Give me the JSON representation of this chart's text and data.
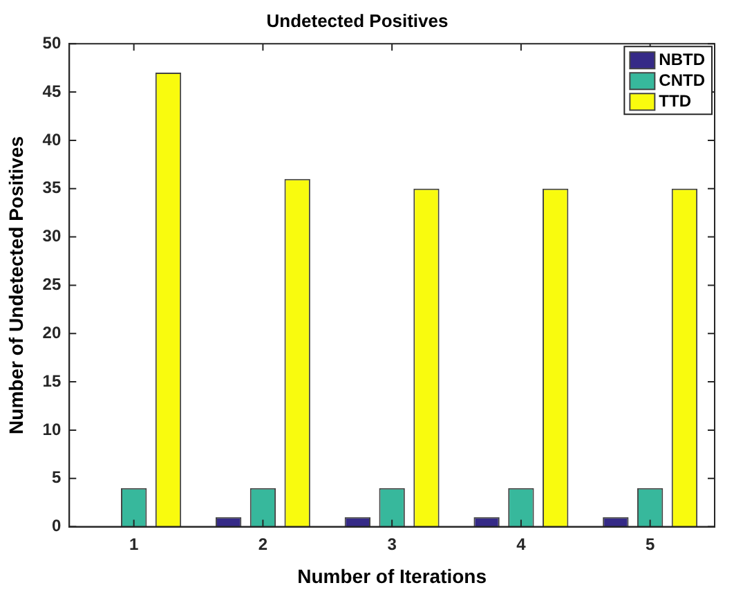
{
  "chart_data": {
    "type": "bar",
    "title": "Undetected Positives",
    "xlabel": "Number of Iterations",
    "ylabel": "Number of Undetected Positives",
    "categories": [
      "1",
      "2",
      "3",
      "4",
      "5"
    ],
    "series": [
      {
        "name": "NBTD",
        "color": "#352a87",
        "values": [
          0,
          1,
          1,
          1,
          1
        ]
      },
      {
        "name": "CNTD",
        "color": "#37b89c",
        "values": [
          4,
          4,
          4,
          4,
          4
        ]
      },
      {
        "name": "TTD",
        "color": "#f9fb0e",
        "values": [
          47,
          36,
          35,
          35,
          35
        ]
      }
    ],
    "ylim": [
      0,
      50
    ],
    "yticks": [
      0,
      5,
      10,
      15,
      20,
      25,
      30,
      35,
      40,
      45,
      50
    ],
    "grid": false,
    "legend": "top right"
  }
}
